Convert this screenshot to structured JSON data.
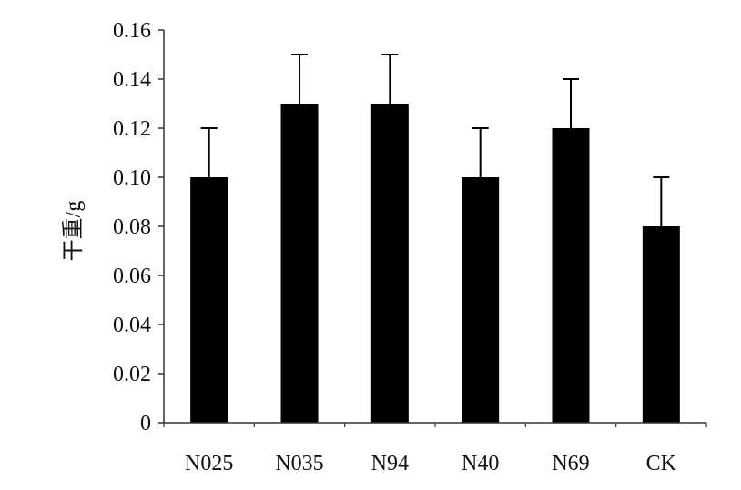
{
  "chart_data": {
    "type": "bar",
    "title": "",
    "xlabel": "",
    "ylabel": "干重/g",
    "categories": [
      "N025",
      "N035",
      "N94",
      "N40",
      "N69",
      "CK"
    ],
    "series": [
      {
        "values": [
          0.1,
          0.13,
          0.13,
          0.1,
          0.12,
          0.08
        ],
        "error_upper": [
          0.02,
          0.02,
          0.02,
          0.02,
          0.02,
          0.02
        ]
      }
    ],
    "ylim": [
      0,
      0.16
    ],
    "yticks": [
      "0",
      "0.02",
      "0.04",
      "0.06",
      "0.08",
      "0.10",
      "0.12",
      "0.14",
      "0.16"
    ],
    "grid": false,
    "legend": "none",
    "colors": {
      "bar": "#000000",
      "axis": "#333333"
    }
  }
}
